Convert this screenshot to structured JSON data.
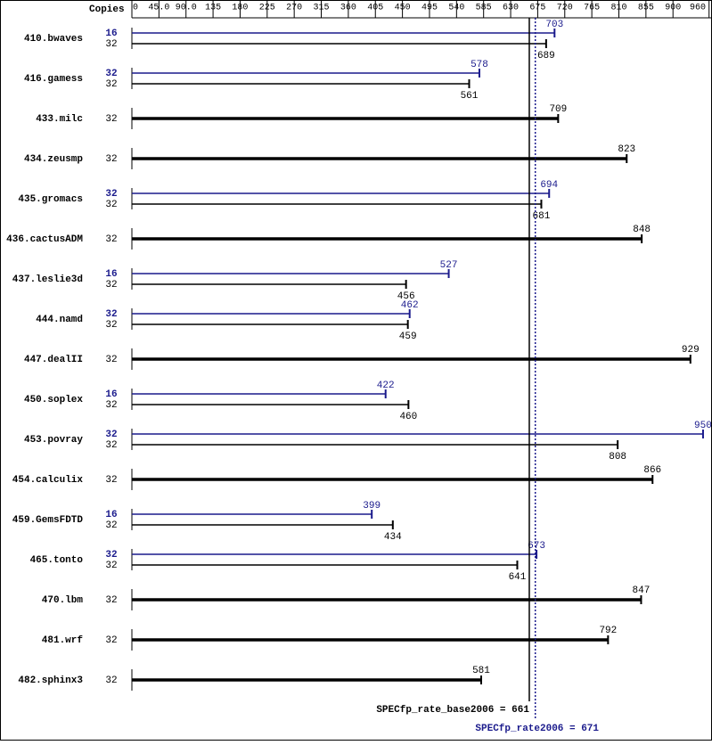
{
  "chart_data": {
    "type": "hbar-reference",
    "axis_title": "Copies",
    "xlim": [
      0,
      960
    ],
    "xticks": [
      0,
      {
        "value": 45,
        "label": "45.0"
      },
      {
        "value": 90,
        "label": "90.0"
      },
      135,
      180,
      225,
      270,
      315,
      360,
      405,
      450,
      495,
      540,
      585,
      630,
      675,
      720,
      765,
      810,
      855,
      900,
      960
    ],
    "categories": [
      "410.bwaves",
      "416.gamess",
      "433.milc",
      "434.zeusmp",
      "435.gromacs",
      "436.cactusADM",
      "437.leslie3d",
      "444.namd",
      "447.dealII",
      "450.soplex",
      "453.povray",
      "454.calculix",
      "459.GemsFDTD",
      "465.tonto",
      "470.lbm",
      "481.wrf",
      "482.sphinx3"
    ],
    "series": [
      {
        "color": "#1a1a8c",
        "copies": [
          16,
          32,
          null,
          null,
          32,
          null,
          16,
          32,
          null,
          16,
          32,
          null,
          16,
          32,
          null,
          null,
          null
        ],
        "values": [
          703,
          578,
          null,
          null,
          694,
          null,
          527,
          462,
          null,
          422,
          950,
          null,
          399,
          673,
          null,
          null,
          null
        ]
      },
      {
        "color": "#000000",
        "copies": [
          32,
          32,
          32,
          32,
          32,
          32,
          32,
          32,
          32,
          32,
          32,
          32,
          32,
          32,
          32,
          32,
          32
        ],
        "values": [
          689,
          561,
          709,
          823,
          681,
          848,
          456,
          459,
          929,
          460,
          808,
          866,
          434,
          641,
          847,
          792,
          581
        ]
      }
    ],
    "reference_lines": [
      {
        "label": "SPECfp_rate_base2006 = 661",
        "value": 661,
        "color": "#000000",
        "style": "solid"
      },
      {
        "label": "SPECfp_rate2006 = 671",
        "value": 671,
        "color": "#1a1a8c",
        "style": "dotted"
      }
    ]
  }
}
